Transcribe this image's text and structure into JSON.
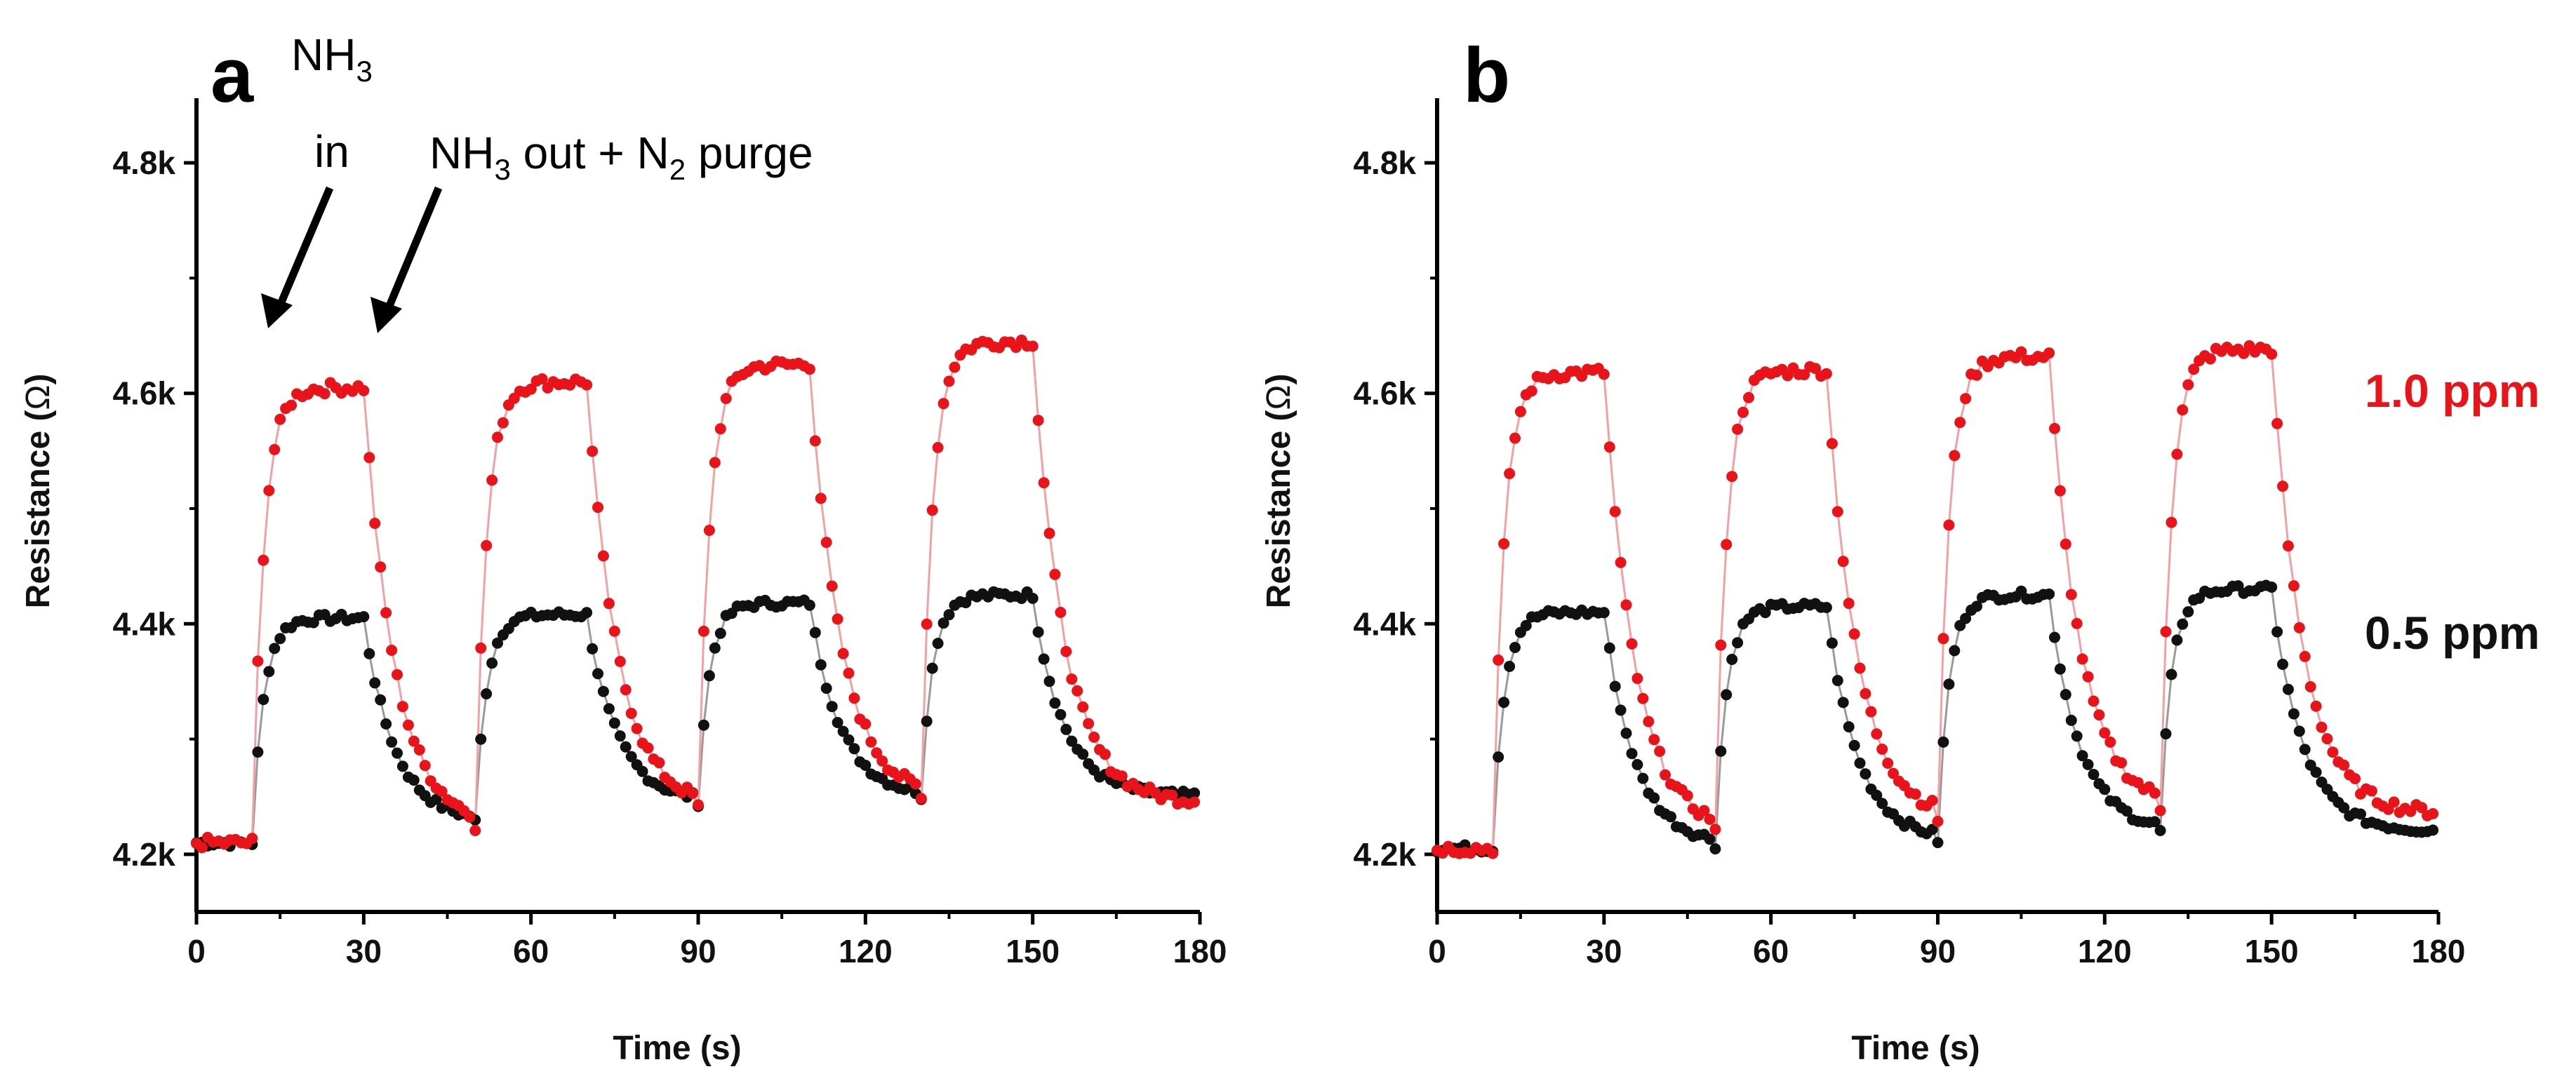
{
  "chart_data": [
    {
      "panel": "a",
      "type": "scatter",
      "title": "",
      "xlabel": "Time (s)",
      "ylabel_main": "Resistance (",
      "ylabel_sym": "Ω",
      "ylabel_end": ")",
      "xlim": [
        0,
        180
      ],
      "ylim": [
        4150,
        4850
      ],
      "xticks": [
        0,
        30,
        60,
        90,
        120,
        150,
        180
      ],
      "yticks": [
        4200,
        4400,
        4600,
        4800
      ],
      "xtick_labels": [
        "0",
        "30",
        "60",
        "90",
        "120",
        "150",
        "180"
      ],
      "ytick_labels": [
        "4.2k",
        "4.4k",
        "4.6k",
        "4.8k"
      ],
      "annotations": {
        "nh3_in_line1": "NH",
        "nh3_in_sub": "3",
        "nh3_in_line2": "in",
        "out_nh": "NH",
        "out_sub3": "3",
        "out_mid": " out + N",
        "out_sub2": "2",
        "out_end": " purge"
      },
      "series": [
        {
          "name": "1.0 ppm",
          "color": "#e8141a",
          "baseline": 4210,
          "pulses": [
            {
              "on": 10,
              "off": 30,
              "plateau": 4605,
              "recover_to": 4225
            },
            {
              "on": 50,
              "off": 70,
              "plateau": 4610,
              "recover_to": 4240
            },
            {
              "on": 90,
              "off": 110,
              "plateau": 4625,
              "recover_to": 4248
            },
            {
              "on": 130,
              "off": 150,
              "plateau": 4645,
              "recover_to": 4245
            }
          ]
        },
        {
          "name": "0.5 ppm",
          "color": "#111111",
          "baseline": 4210,
          "pulses": [
            {
              "on": 10,
              "off": 30,
              "plateau": 4405,
              "recover_to": 4228
            },
            {
              "on": 50,
              "off": 70,
              "plateau": 4408,
              "recover_to": 4245
            },
            {
              "on": 90,
              "off": 110,
              "plateau": 4418,
              "recover_to": 4250
            },
            {
              "on": 130,
              "off": 150,
              "plateau": 4425,
              "recover_to": 4250
            }
          ]
        }
      ]
    },
    {
      "panel": "b",
      "type": "scatter",
      "title": "",
      "xlabel": "Time (s)",
      "ylabel_main": "Resistance (",
      "ylabel_sym": "Ω",
      "ylabel_end": ")",
      "xlim": [
        0,
        180
      ],
      "ylim": [
        4150,
        4850
      ],
      "xticks": [
        0,
        30,
        60,
        90,
        120,
        150,
        180
      ],
      "yticks": [
        4200,
        4400,
        4600,
        4800
      ],
      "xtick_labels": [
        "0",
        "30",
        "60",
        "90",
        "120",
        "150",
        "180"
      ],
      "ytick_labels": [
        "4.2k",
        "4.4k",
        "4.6k",
        "4.8k"
      ],
      "legend": {
        "red": "1.0 ppm",
        "black": "0.5 ppm"
      },
      "series": [
        {
          "name": "1.0 ppm",
          "color": "#e8141a",
          "baseline": 4205,
          "pulses": [
            {
              "on": 10,
              "off": 30,
              "plateau": 4618,
              "recover_to": 4220
            },
            {
              "on": 50,
              "off": 70,
              "plateau": 4620,
              "recover_to": 4230
            },
            {
              "on": 90,
              "off": 110,
              "plateau": 4632,
              "recover_to": 4240
            },
            {
              "on": 130,
              "off": 150,
              "plateau": 4638,
              "recover_to": 4235
            }
          ]
        },
        {
          "name": "0.5 ppm",
          "color": "#111111",
          "baseline": 4205,
          "pulses": [
            {
              "on": 10,
              "off": 30,
              "plateau": 4410,
              "recover_to": 4208
            },
            {
              "on": 50,
              "off": 70,
              "plateau": 4415,
              "recover_to": 4212
            },
            {
              "on": 90,
              "off": 110,
              "plateau": 4425,
              "recover_to": 4220
            },
            {
              "on": 130,
              "off": 150,
              "plateau": 4430,
              "recover_to": 4220
            }
          ]
        }
      ]
    }
  ]
}
